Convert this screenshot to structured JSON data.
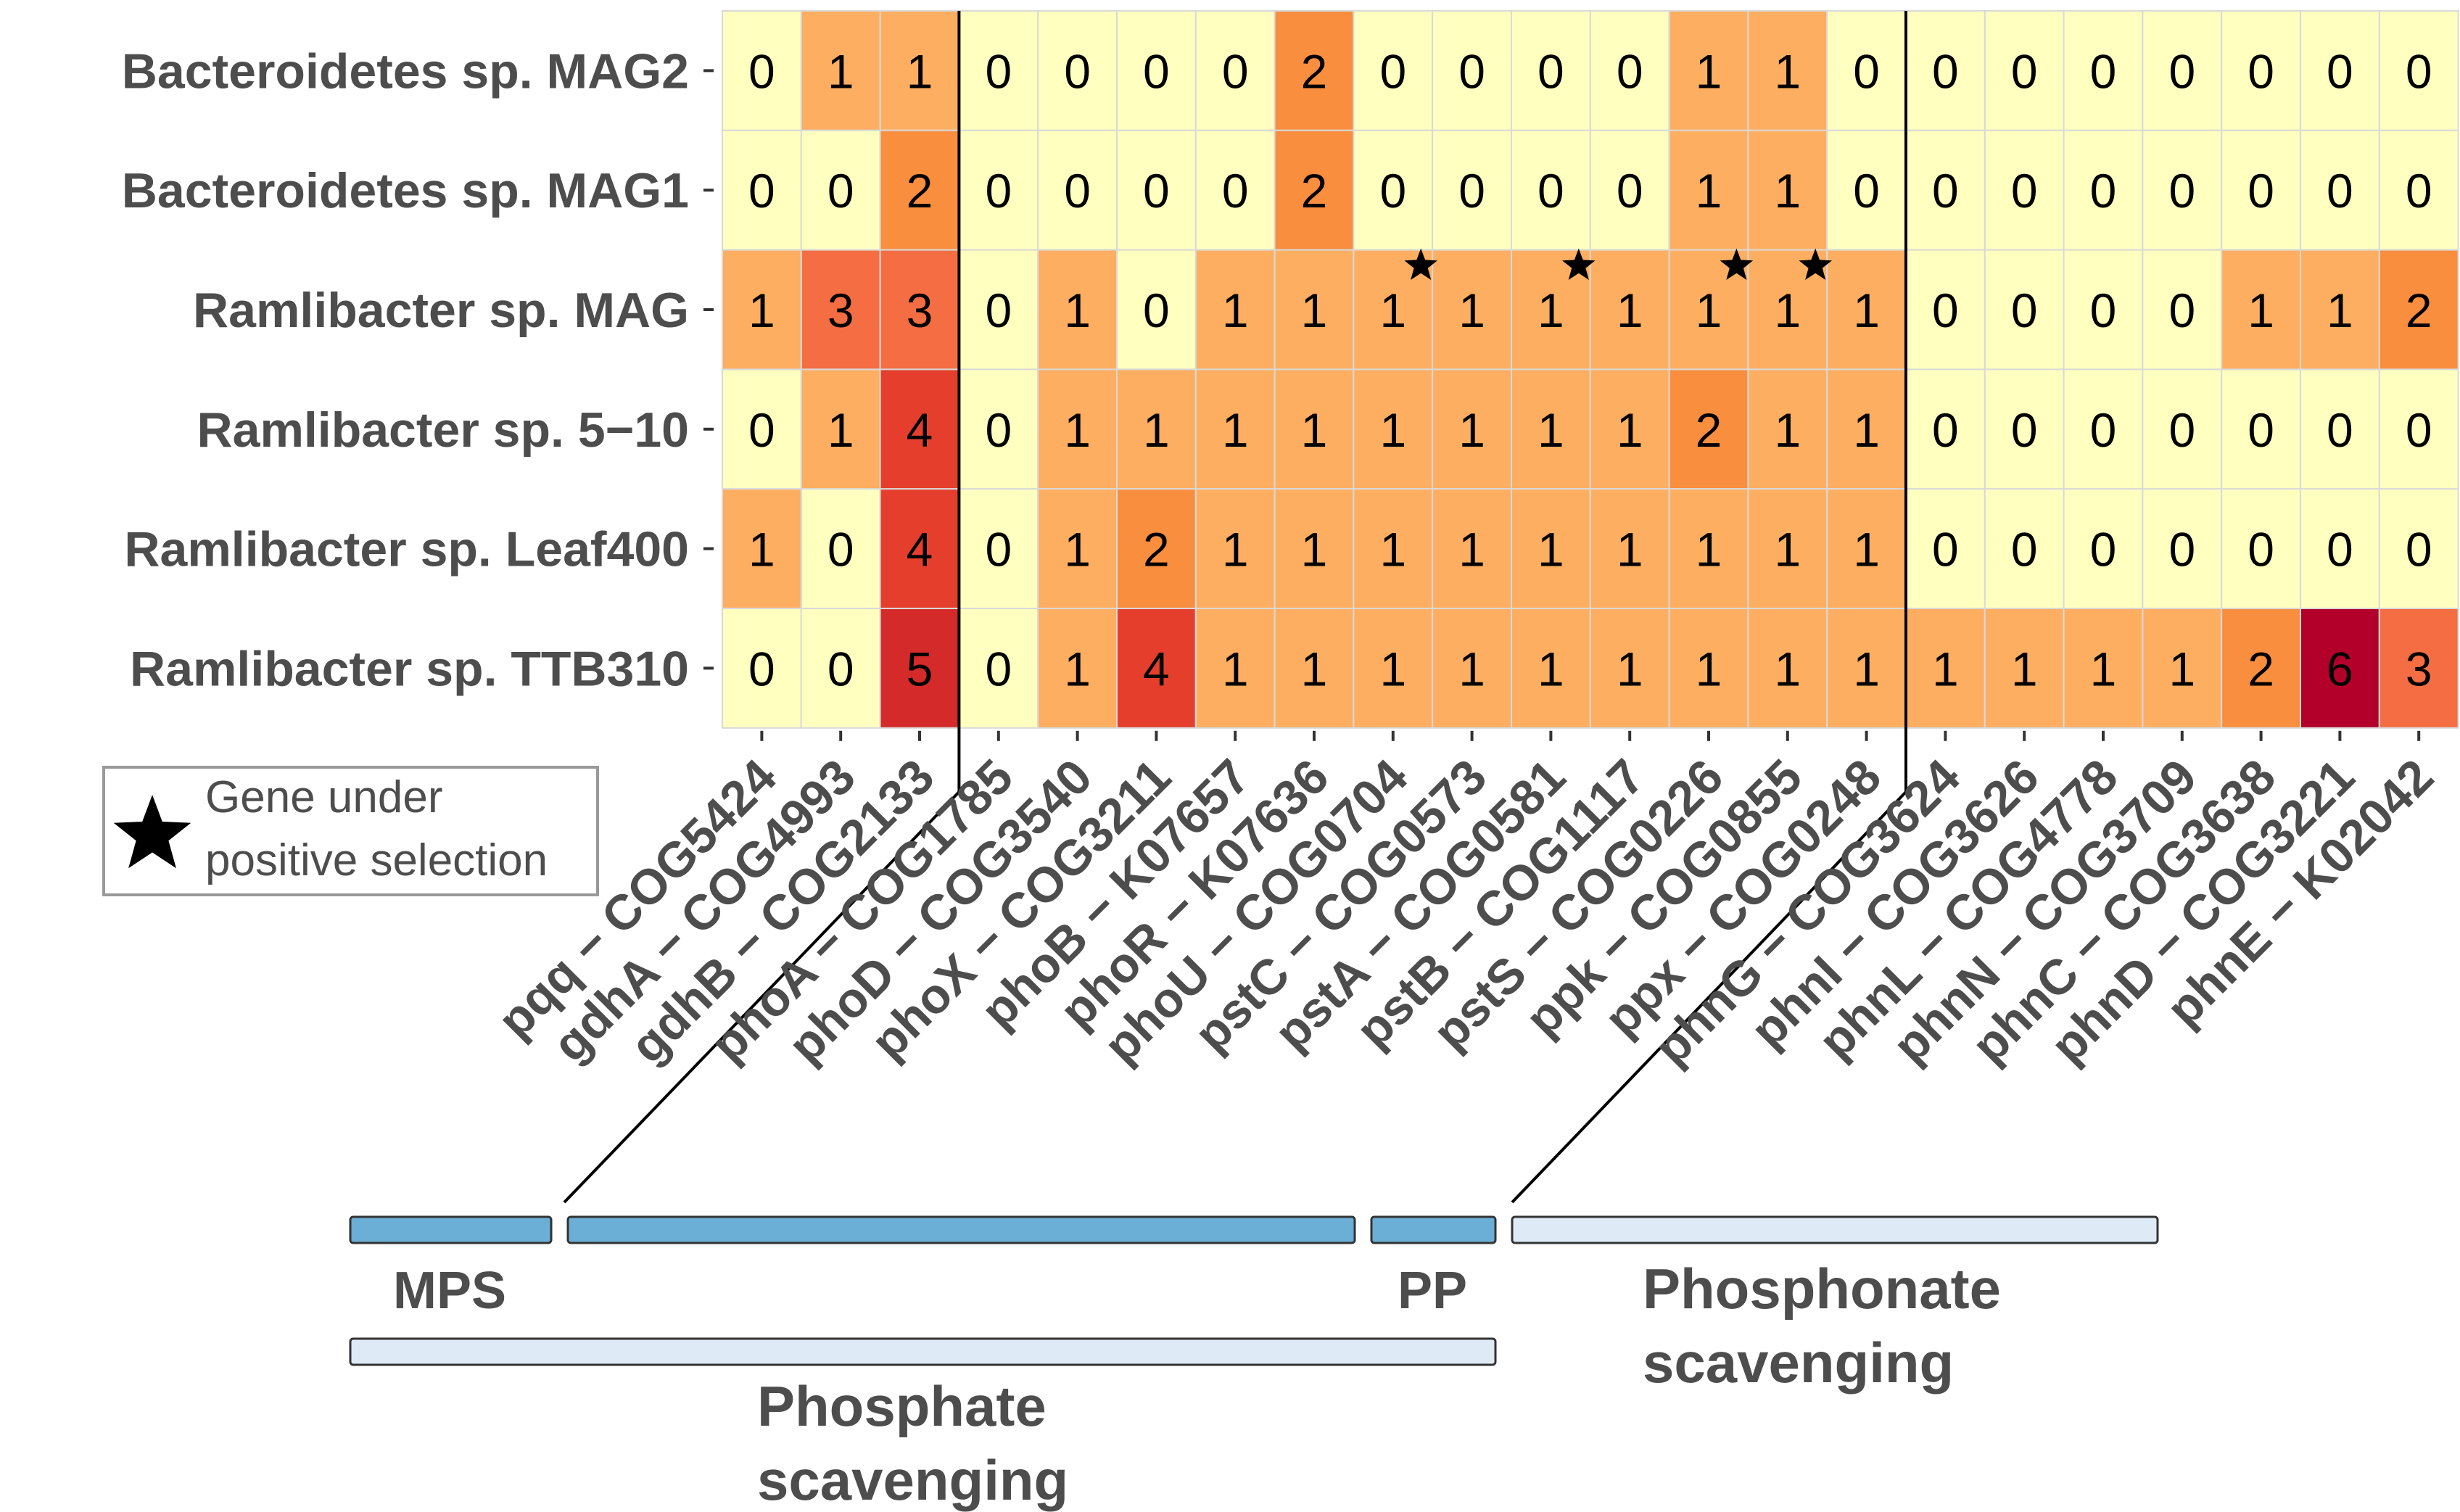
{
  "chart_data": {
    "type": "heatmap",
    "rows": [
      "Bacteroidetes sp. MAG2",
      "Bacteroidetes sp. MAG1",
      "Ramlibacter sp. MAG",
      "Ramlibacter sp. 5−10",
      "Ramlibacter sp. Leaf400",
      "Ramlibacter sp. TTB310"
    ],
    "columns": [
      "pqq − COG5424",
      "gdhA − COG4993",
      "gdhB − COG2133",
      "phoA − COG1785",
      "phoD − COG3540",
      "phoX − COG3211",
      "phoB − K07657",
      "phoR − K07636",
      "phoU − COG0704",
      "pstC − COG0573",
      "pstA − COG0581",
      "pstB − COG1117",
      "pstS − COG0226",
      "ppk − COG0855",
      "ppx − COG0248",
      "phnG − COG3624",
      "phnI − COG3626",
      "phnL − COG4778",
      "phnN − COG3709",
      "phnC − COG3638",
      "phnD − COG3221",
      "phnE − K02042"
    ],
    "values": [
      [
        0,
        1,
        1,
        0,
        0,
        0,
        0,
        2,
        0,
        0,
        0,
        0,
        1,
        1,
        0,
        0,
        0,
        0,
        0,
        0,
        0,
        0
      ],
      [
        0,
        0,
        2,
        0,
        0,
        0,
        0,
        2,
        0,
        0,
        0,
        0,
        1,
        1,
        0,
        0,
        0,
        0,
        0,
        0,
        0,
        0
      ],
      [
        1,
        3,
        3,
        0,
        1,
        0,
        1,
        1,
        1,
        1,
        1,
        1,
        1,
        1,
        1,
        0,
        0,
        0,
        0,
        1,
        1,
        2
      ],
      [
        0,
        1,
        4,
        0,
        1,
        1,
        1,
        1,
        1,
        1,
        1,
        1,
        2,
        1,
        1,
        0,
        0,
        0,
        0,
        0,
        0,
        0
      ],
      [
        1,
        0,
        4,
        0,
        1,
        2,
        1,
        1,
        1,
        1,
        1,
        1,
        1,
        1,
        1,
        0,
        0,
        0,
        0,
        0,
        0,
        0
      ],
      [
        0,
        0,
        5,
        0,
        1,
        4,
        1,
        1,
        1,
        1,
        1,
        1,
        1,
        1,
        1,
        1,
        1,
        1,
        1,
        2,
        6,
        3
      ]
    ],
    "color_scale": {
      "0": "#ffffbf",
      "1": "#fdae61",
      "2": "#f98e3f",
      "3": "#f46d43",
      "4": "#e53e2c",
      "5": "#d42a2a",
      "6": "#b2002a"
    },
    "selection_markers": [
      {
        "row": "Ramlibacter sp. MAG",
        "column": "phoU − COG0704"
      },
      {
        "row": "Ramlibacter sp. MAG",
        "column": "pstA − COG0581"
      },
      {
        "row": "Ramlibacter sp. MAG",
        "column": "pstS − COG0226"
      },
      {
        "row": "Ramlibacter sp. MAG",
        "column": "ppk − COG0855"
      }
    ],
    "legend": {
      "label_line1": "Gene under",
      "label_line2": "positive selection",
      "placement": "bottom-left"
    },
    "group_dividers_after_column": [
      "gdhB − COG2133",
      "ppx − COG0248"
    ],
    "groups": {
      "level1": [
        {
          "label": "MPS",
          "from": "pqq − COG5424",
          "to": "gdhB − COG2133",
          "color": "#6baed6"
        },
        {
          "label": "",
          "from": "phoA − COG1785",
          "to": "pstS − COG0226",
          "color": "#6baed6"
        },
        {
          "label": "PP",
          "from": "ppk − COG0855",
          "to": "ppx − COG0248",
          "color": "#6baed6"
        },
        {
          "label": "Phosphonate scavenging",
          "from": "phnG − COG3624",
          "to": "phnE − K02042",
          "color": "#deebf7"
        }
      ],
      "level2": [
        {
          "label": "Phosphate scavenging",
          "from": "pqq − COG5424",
          "to": "ppx − COG0248",
          "color": "#deebf7"
        }
      ]
    },
    "label_lines": {
      "phosphate": [
        "Phosphate",
        "scavenging"
      ],
      "phosphonate": [
        "Phosphonate",
        "scavenging"
      ]
    },
    "text_color": "#4d4d4d",
    "grid_color": "#d9d9d9"
  }
}
